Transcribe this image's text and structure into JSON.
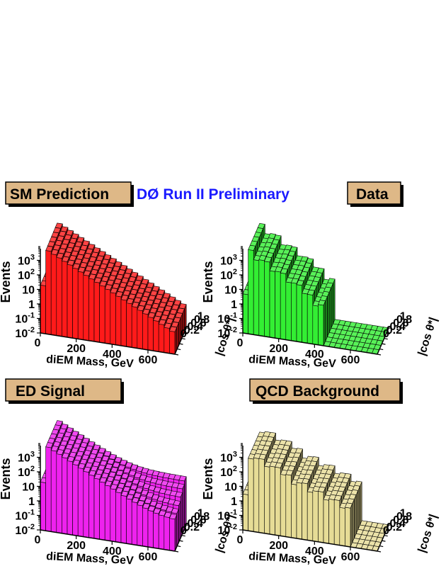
{
  "experiment_label": "DØ Run II Preliminary",
  "colors": {
    "headline": "#1a1aff",
    "label_box": "#deb887",
    "label_shadow": "#000000"
  },
  "axes": {
    "z_label": "Events",
    "x_label": "diEM Mass, GeV",
    "y_label": "|cos θ*|",
    "x_ticks": [
      "0",
      "200",
      "400",
      "600"
    ],
    "y_ticks": [
      "0",
      "0.2",
      "0.4",
      "0.6",
      "0.8",
      "1"
    ],
    "z_ticks": [
      {
        "base": "10",
        "exp": "3"
      },
      {
        "base": "10",
        "exp": "2"
      },
      {
        "base": "10",
        "exp": ""
      },
      {
        "base": "1",
        "exp": ""
      },
      {
        "base": "10",
        "exp": "-1"
      },
      {
        "base": "10",
        "exp": "-2"
      }
    ]
  },
  "chart_data": [
    {
      "type": "bar3d",
      "title": "SM Prediction",
      "color": "#ff1a1a",
      "x_range": [
        0,
        750
      ],
      "y_range": [
        0,
        1
      ],
      "z_scale": "log",
      "z_range": [
        0.01,
        10000
      ],
      "description_of_shape": "smooth Drell-Yan falloff in mass, nearly flat in |cos theta*|",
      "peak_events": 6000,
      "min_events": 0.3
    },
    {
      "type": "bar3d",
      "title": "Data",
      "color": "#33ee33",
      "x_range": [
        0,
        750
      ],
      "y_range": [
        0,
        1
      ],
      "z_scale": "log",
      "z_range": [
        0.01,
        10000
      ],
      "description_of_shape": "sparse bins, no events above ~450 GeV",
      "peak_events": 5000,
      "min_events": 1
    },
    {
      "type": "bar3d",
      "title": "ED Signal",
      "color": "#ee22ee",
      "x_range": [
        0,
        750
      ],
      "y_range": [
        0,
        1
      ],
      "z_scale": "log",
      "z_range": [
        0.01,
        10000
      ],
      "description_of_shape": "falloff with high-mass plateau rising toward |cos theta*| = 1",
      "peak_events": 6000,
      "min_events": 1
    },
    {
      "type": "bar3d",
      "title": "QCD Background",
      "color": "#e6dc96",
      "x_range": [
        0,
        750
      ],
      "y_range": [
        0,
        1
      ],
      "z_scale": "log",
      "z_range": [
        0.01,
        10000
      ],
      "description_of_shape": "jagged falloff concentrated below ~500 GeV",
      "peak_events": 1500,
      "min_events": 0.5
    }
  ]
}
